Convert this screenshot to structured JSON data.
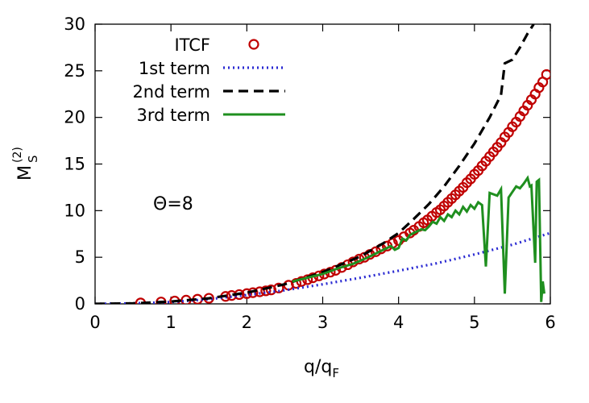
{
  "chart_data": {
    "type": "line",
    "title": "",
    "xlabel": "q/q",
    "xlabel_sub": "F",
    "ylabel": "M",
    "ylabel_sup": "(2)",
    "ylabel_sub": "S",
    "xlim": [
      0,
      6
    ],
    "ylim": [
      0,
      30
    ],
    "xticks": [
      0,
      1,
      2,
      3,
      4,
      5,
      6
    ],
    "yticks": [
      0,
      5,
      10,
      15,
      20,
      25,
      30
    ],
    "grid": false,
    "legend_position": "top-left",
    "annotation": "Θ=8",
    "series": [
      {
        "name": "ITCF",
        "style": "circles",
        "color": "#c00000",
        "x": [
          0.6,
          0.87,
          1.05,
          1.2,
          1.35,
          1.5,
          1.72,
          1.8,
          1.9,
          2.0,
          2.08,
          2.17,
          2.25,
          2.32,
          2.42,
          2.55,
          2.65,
          2.72,
          2.8,
          2.87,
          2.95,
          3.02,
          3.1,
          3.17,
          3.25,
          3.33,
          3.4,
          3.48,
          3.55,
          3.62,
          3.7,
          3.77,
          3.85,
          3.92,
          4.0,
          4.07,
          4.15,
          4.2,
          4.27,
          4.33,
          4.38,
          4.44,
          4.5,
          4.55,
          4.6,
          4.65,
          4.7,
          4.75,
          4.8,
          4.85,
          4.9,
          4.95,
          5.0,
          5.05,
          5.1,
          5.15,
          5.2,
          5.25,
          5.3,
          5.35,
          5.4,
          5.45,
          5.5,
          5.55,
          5.6,
          5.65,
          5.7,
          5.75,
          5.8,
          5.85,
          5.9,
          5.95
        ],
        "y": [
          0.1,
          0.2,
          0.3,
          0.4,
          0.5,
          0.6,
          0.8,
          0.9,
          1.0,
          1.1,
          1.2,
          1.3,
          1.4,
          1.5,
          1.7,
          2.0,
          2.2,
          2.4,
          2.6,
          2.8,
          3.0,
          3.2,
          3.4,
          3.6,
          3.9,
          4.2,
          4.5,
          4.8,
          5.0,
          5.3,
          5.6,
          5.9,
          6.2,
          6.5,
          6.8,
          7.2,
          7.6,
          7.9,
          8.3,
          8.7,
          9.0,
          9.4,
          9.8,
          10.1,
          10.5,
          10.9,
          11.3,
          11.7,
          12.1,
          12.5,
          13.0,
          13.4,
          13.9,
          14.3,
          14.8,
          15.3,
          15.8,
          16.3,
          16.8,
          17.3,
          17.9,
          18.4,
          19.0,
          19.5,
          20.1,
          20.7,
          21.3,
          21.9,
          22.5,
          23.2,
          23.8,
          24.6
        ]
      },
      {
        "name": "1st term",
        "style": "dotted",
        "color": "#2a2ad2",
        "x": [
          0,
          0.5,
          1.0,
          1.5,
          2.0,
          2.5,
          3.0,
          3.5,
          4.0,
          4.5,
          5.0,
          5.5,
          6.0
        ],
        "y": [
          0,
          0.05,
          0.2,
          0.5,
          0.95,
          1.45,
          2.1,
          2.8,
          3.55,
          4.35,
          5.3,
          6.35,
          7.6
        ]
      },
      {
        "name": "2nd term",
        "style": "dashed",
        "color": "#000000",
        "x": [
          0,
          0.5,
          1.0,
          1.5,
          2.0,
          2.5,
          3.0,
          3.5,
          3.8,
          4.0,
          4.2,
          4.4,
          4.6,
          4.8,
          5.0,
          5.2,
          5.35,
          5.4,
          5.5,
          5.6,
          5.7,
          5.78
        ],
        "y": [
          0,
          0.05,
          0.25,
          0.6,
          1.2,
          2.1,
          3.4,
          5.1,
          6.5,
          7.6,
          9.1,
          10.7,
          12.6,
          14.8,
          17.2,
          20.0,
          22.4,
          25.8,
          26.2,
          27.5,
          29.0,
          30.0
        ]
      },
      {
        "name": "3rd term",
        "style": "solid",
        "color": "#1f8f1f",
        "x": [
          2.6,
          2.8,
          3.0,
          3.2,
          3.4,
          3.6,
          3.8,
          3.9,
          3.95,
          4.0,
          4.05,
          4.1,
          4.15,
          4.2,
          4.3,
          4.35,
          4.4,
          4.45,
          4.5,
          4.55,
          4.6,
          4.65,
          4.7,
          4.75,
          4.8,
          4.85,
          4.9,
          4.95,
          5.0,
          5.05,
          5.1,
          5.15,
          5.2,
          5.3,
          5.35,
          5.4,
          5.45,
          5.5,
          5.55,
          5.6,
          5.65,
          5.7,
          5.73,
          5.75,
          5.8,
          5.82,
          5.85,
          5.88,
          5.9,
          5.92
        ],
        "y": [
          2.4,
          2.8,
          3.2,
          3.8,
          4.3,
          5.0,
          5.8,
          6.2,
          5.8,
          6.0,
          7.0,
          6.8,
          7.4,
          7.6,
          8.0,
          7.9,
          8.3,
          8.8,
          8.6,
          9.3,
          8.9,
          9.6,
          9.3,
          10.0,
          9.6,
          10.4,
          9.9,
          10.6,
          10.2,
          10.9,
          10.6,
          4.0,
          11.9,
          11.6,
          12.3,
          1.1,
          11.4,
          12.0,
          12.6,
          12.4,
          12.9,
          13.5,
          12.6,
          12.7,
          4.4,
          13.1,
          13.3,
          0.2,
          2.4,
          1.1
        ]
      }
    ]
  }
}
